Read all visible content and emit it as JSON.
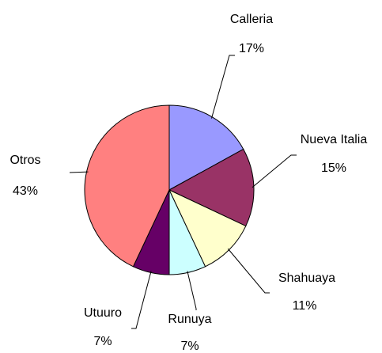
{
  "chart_data": {
    "type": "pie",
    "categories": [
      "Calleria",
      "Nueva Italia",
      "Shahuaya",
      "Runuya",
      "Utuuro",
      "Otros"
    ],
    "values": [
      17,
      15,
      11,
      7,
      7,
      43
    ],
    "value_labels": [
      "17%",
      "15%",
      "11%",
      "7%",
      "7%",
      "43%"
    ],
    "colors": [
      "#9999ff",
      "#993366",
      "#ffffcc",
      "#ccffff",
      "#660066",
      "#ff8080"
    ]
  }
}
